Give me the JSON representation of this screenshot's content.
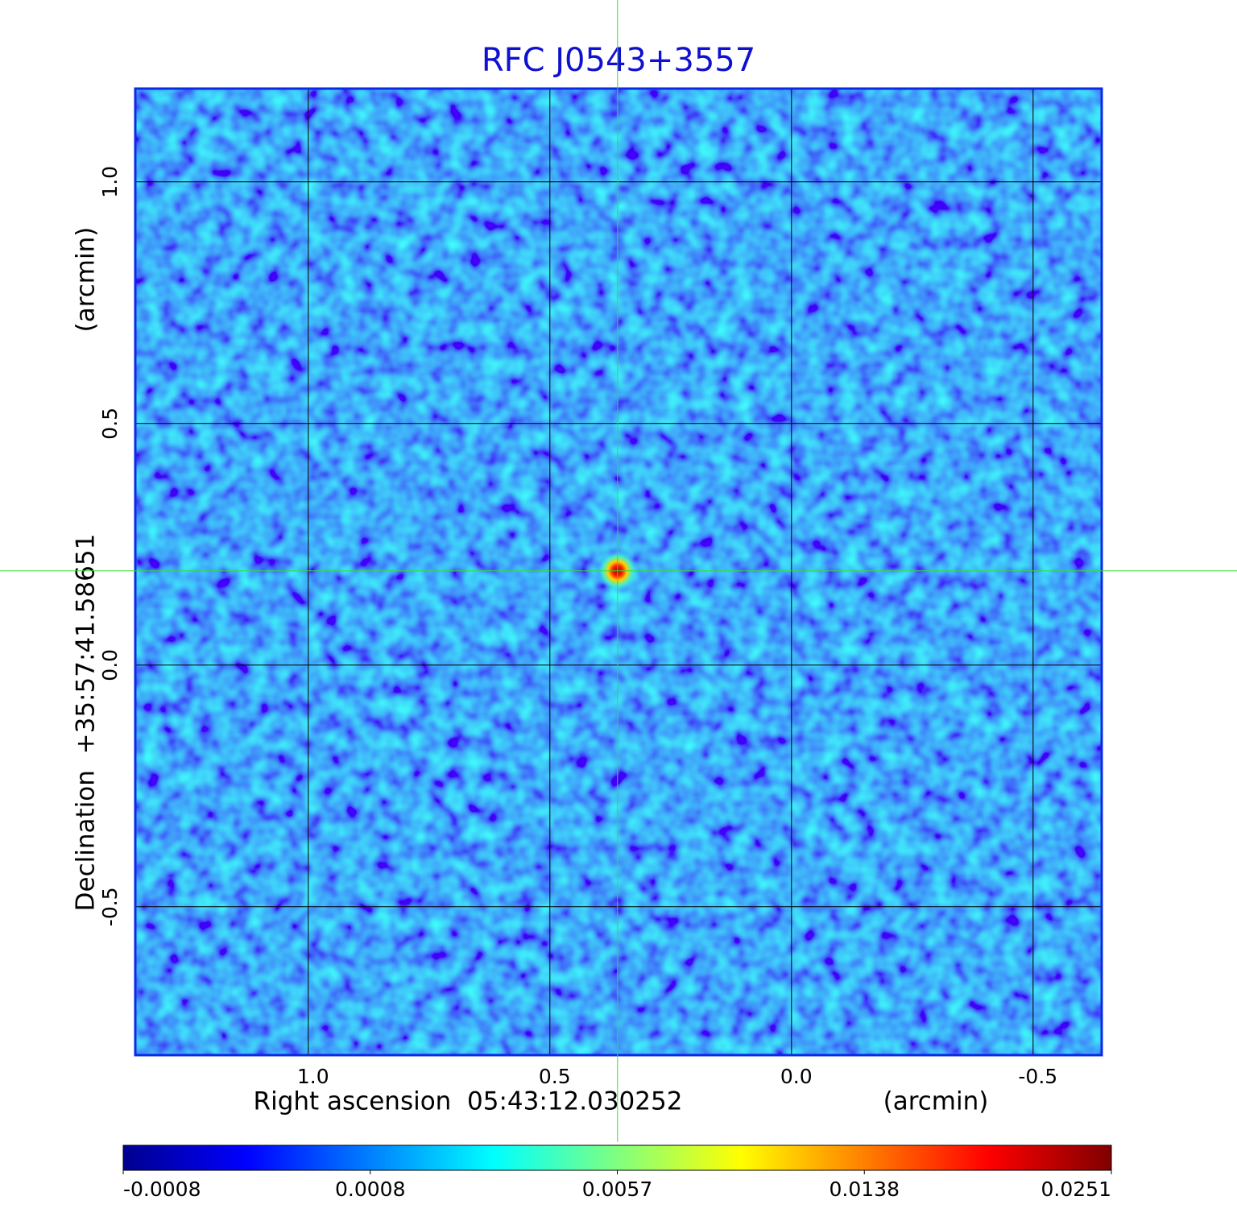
{
  "chart_data": {
    "type": "image",
    "title": "RFC J0543+3557",
    "xlabel": "Right ascension  05:43:12.030252",
    "xunit": "(arcmin)",
    "ylabel": "Declination  +35:57:41.58651",
    "yunit": "(arcmin)",
    "xlim": [
      1.358,
      -0.642
    ],
    "ylim": [
      -0.807,
      1.193
    ],
    "xticks": [
      {
        "value": 1.0,
        "label": "1.0"
      },
      {
        "value": 0.5,
        "label": "0.5"
      },
      {
        "value": 0.0,
        "label": "0.0"
      },
      {
        "value": -0.5,
        "label": "-0.5"
      }
    ],
    "yticks": [
      {
        "value": -0.5,
        "label": "-0.5"
      },
      {
        "value": 0.0,
        "label": "0.0"
      },
      {
        "value": 0.5,
        "label": "0.5"
      },
      {
        "value": 1.0,
        "label": "1.0"
      }
    ],
    "grid": true,
    "colormap": "jet",
    "source": {
      "x": 0.36,
      "y": 0.195,
      "peak": 0.0251
    },
    "colorbar_ticks": [
      -0.0008,
      0.0008,
      0.0057,
      0.0138,
      0.0251
    ]
  }
}
